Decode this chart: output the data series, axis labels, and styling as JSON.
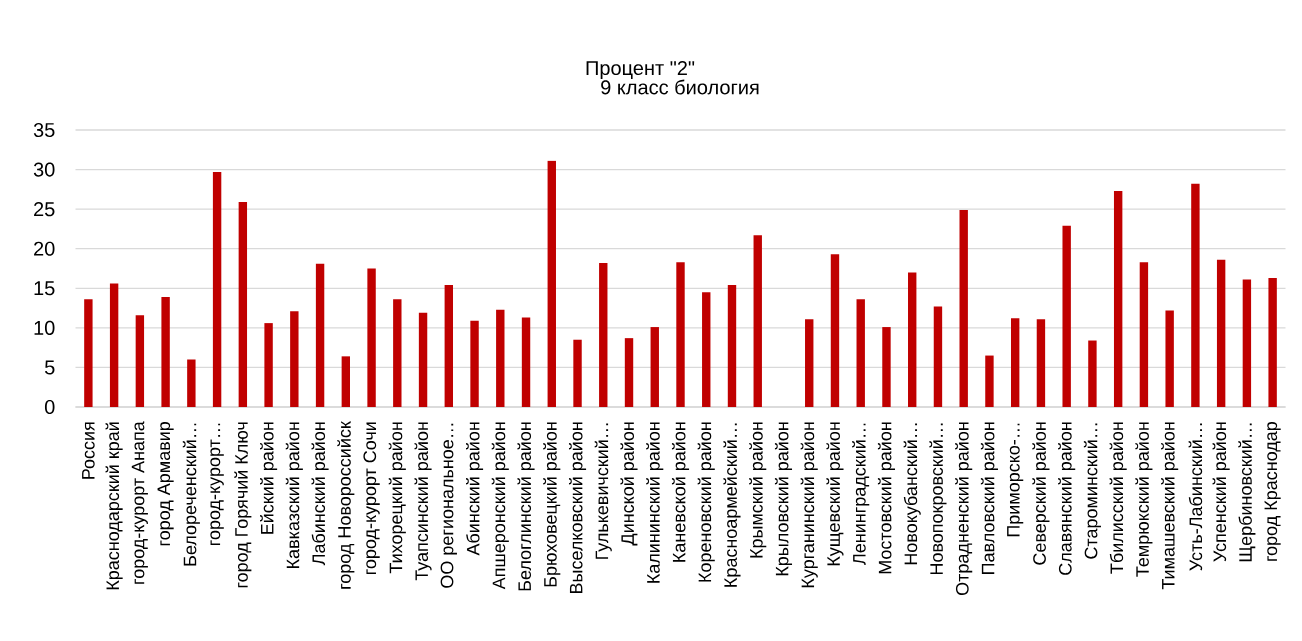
{
  "chart_data": {
    "type": "bar",
    "title": "Процент \"2\"",
    "subtitle": "9 класс биология",
    "categories": [
      "Россия",
      "Краснодарский край",
      "город-курорт Анапа",
      "город Армавир",
      "Белореченский…",
      "город-курорт…",
      "город Горячий Ключ",
      "Ейский район",
      "Кавказский район",
      "Лабинский район",
      "город Новороссийск",
      "город-курорт Сочи",
      "Тихорецкий район",
      "Туапсинский район",
      "ОО региональное…",
      "Абинский район",
      "Апшеронский район",
      "Белоглинский район",
      "Брюховецкий район",
      "Выселковский район",
      "Гулькевичский…",
      "Динской район",
      "Калининский район",
      "Каневской район",
      "Кореновский район",
      "Красноармейский…",
      "Крымский район",
      "Крыловский район",
      "Курганинский район",
      "Кущевский район",
      "Ленинградский…",
      "Мостовский район",
      "Новокубанский…",
      "Новопокровский…",
      "Отрадненский район",
      "Павловский район",
      "Приморско-…",
      "Северский район",
      "Славянский район",
      "Староминский…",
      "Тбилисский район",
      "Темрюкский район",
      "Тимашевский район",
      "Усть-Лабинский…",
      "Успенский район",
      "Щербиновский…",
      "город Краснодар"
    ],
    "values": [
      13.6,
      15.6,
      11.6,
      13.9,
      6.0,
      29.7,
      25.9,
      10.6,
      12.1,
      18.1,
      6.4,
      17.5,
      13.6,
      11.9,
      15.4,
      10.9,
      12.3,
      11.3,
      31.1,
      8.5,
      18.2,
      8.7,
      10.1,
      18.3,
      14.5,
      15.4,
      21.7,
      null,
      11.1,
      19.3,
      13.6,
      10.1,
      17.0,
      12.7,
      24.9,
      6.5,
      11.2,
      11.1,
      22.9,
      8.4,
      27.3,
      18.3,
      12.2,
      28.2,
      18.6,
      16.1,
      16.3
    ],
    "color": "#c00000",
    "ylim": [
      0,
      35
    ],
    "yticks": [
      0,
      5,
      10,
      15,
      20,
      25,
      30,
      35
    ],
    "grid": "y"
  }
}
